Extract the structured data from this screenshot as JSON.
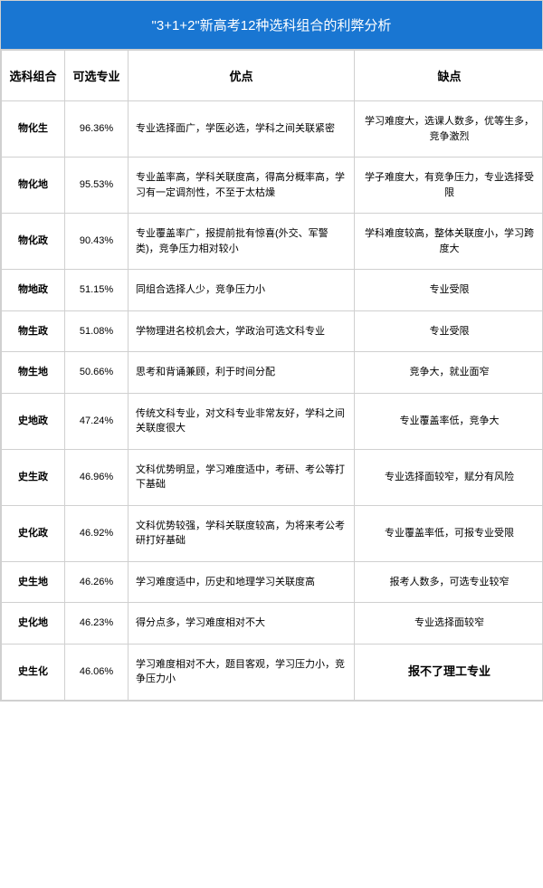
{
  "title": "\"3+1+2\"新高考12种选科组合的利弊分析",
  "colors": {
    "header_bg": "#1976d2",
    "header_text": "#ffffff",
    "border": "#d0d0d0",
    "cell_bg": "#ffffff",
    "text": "#000000"
  },
  "columns": {
    "combo": "选科组合",
    "percent": "可选专业",
    "pros": "优点",
    "cons": "缺点"
  },
  "rows": [
    {
      "combo": "物化生",
      "percent": "96.36%",
      "pros": "专业选择面广，学医必选，学科之间关联紧密",
      "cons": "学习难度大，选课人数多，优等生多，竞争激烈"
    },
    {
      "combo": "物化地",
      "percent": "95.53%",
      "pros": "专业盖率高，学科关联度高，得高分概率高，学习有一定调剂性，不至于太枯燥",
      "cons": "学子难度大，有竞争压力，专业选择受限"
    },
    {
      "combo": "物化政",
      "percent": "90.43%",
      "pros": "专业覆盖率广，报提前批有惊喜(外交、军警类)，竞争压力相对较小",
      "cons": "学科难度较高，整体关联度小，学习跨度大"
    },
    {
      "combo": "物地政",
      "percent": "51.15%",
      "pros": "同组合选择人少，竞争压力小",
      "cons": "专业受限"
    },
    {
      "combo": "物生政",
      "percent": "51.08%",
      "pros": "学物理进名校机会大，学政治可选文科专业",
      "cons": "专业受限"
    },
    {
      "combo": "物生地",
      "percent": "50.66%",
      "pros": "思考和背诵兼顾，利于时间分配",
      "cons": "竞争大，就业面窄"
    },
    {
      "combo": "史地政",
      "percent": "47.24%",
      "pros": "传统文科专业，对文科专业非常友好，学科之间关联度很大",
      "cons": "专业覆盖率低，竞争大"
    },
    {
      "combo": "史生政",
      "percent": "46.96%",
      "pros": "文科优势明显，学习难度适中，考研、考公等打下基础",
      "cons": "专业选择面较窄，赋分有风险"
    },
    {
      "combo": "史化政",
      "percent": "46.92%",
      "pros": "文科优势较强，学科关联度较高，为将来考公考研打好基础",
      "cons": "专业覆盖率低，可报专业受限"
    },
    {
      "combo": "史生地",
      "percent": "46.26%",
      "pros": "学习难度适中，历史和地理学习关联度高",
      "cons": "报考人数多，可选专业较窄"
    },
    {
      "combo": "史化地",
      "percent": "46.23%",
      "pros": "得分点多，学习难度相对不大",
      "cons": "专业选择面较窄"
    },
    {
      "combo": "史生化",
      "percent": "46.06%",
      "pros": "学习难度相对不大，题目客观，学习压力小，竞争压力小",
      "cons": "报不了理工专业",
      "cons_special": true
    }
  ]
}
